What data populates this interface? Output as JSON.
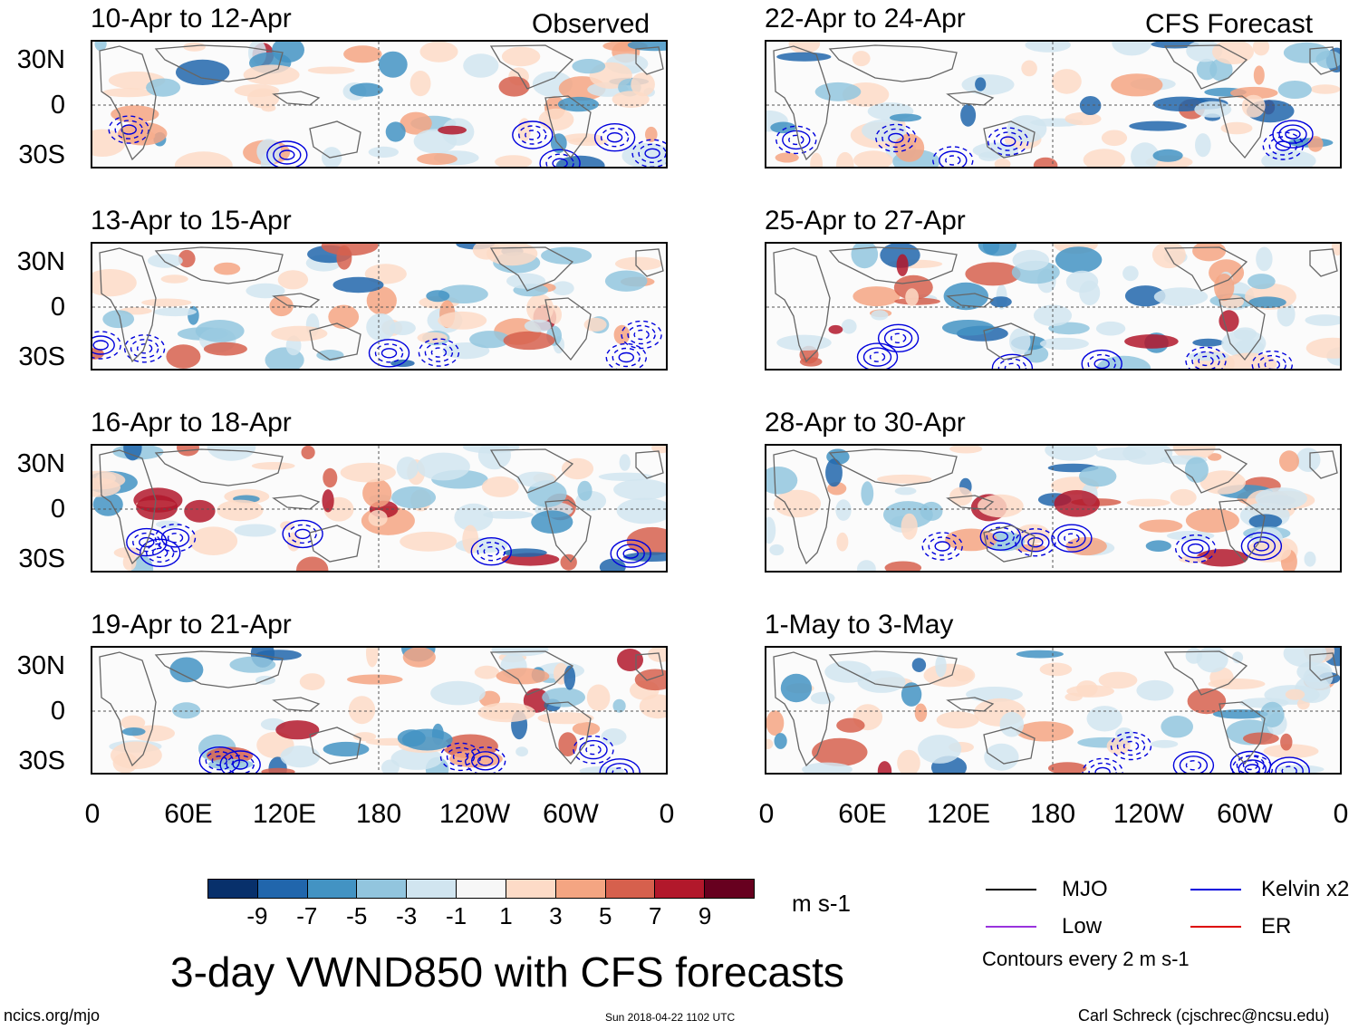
{
  "left_header": "Observed",
  "right_header": "CFS Forecast",
  "panels_left": [
    {
      "title": "10-Apr to 12-Apr"
    },
    {
      "title": "13-Apr to 15-Apr"
    },
    {
      "title": "16-Apr to 18-Apr"
    },
    {
      "title": "19-Apr to 21-Apr"
    }
  ],
  "panels_right": [
    {
      "title": "22-Apr to 24-Apr"
    },
    {
      "title": "25-Apr to 27-Apr"
    },
    {
      "title": "28-Apr to 30-Apr"
    },
    {
      "title": "1-May to 3-May"
    }
  ],
  "y_ticks": [
    "30N",
    "0",
    "30S"
  ],
  "x_ticks": [
    "0",
    "60E",
    "120E",
    "180",
    "120W",
    "60W",
    "0"
  ],
  "colorbar": {
    "colors": [
      "#08306b",
      "#2166ac",
      "#4393c3",
      "#92c5de",
      "#d1e5f0",
      "#f7f7f7",
      "#fddbc7",
      "#f4a582",
      "#d6604d",
      "#b2182b",
      "#67001f"
    ],
    "labels": [
      "-9",
      "-7",
      "-5",
      "-3",
      "-1",
      "1",
      "3",
      "5",
      "7",
      "9"
    ],
    "units": "m s-1"
  },
  "legend": {
    "items": [
      {
        "label": "MJO",
        "color": "#000000"
      },
      {
        "label": "Kelvin x2",
        "color": "#0000dd"
      },
      {
        "label": "Low",
        "color": "#9933dd"
      },
      {
        "label": "ER",
        "color": "#dd0000"
      }
    ],
    "note": "Contours every 2 m s-1"
  },
  "main_title": "3-day VWND850 with CFS forecasts",
  "footer": {
    "left": "ncics.org/mjo",
    "center": "Sun 2018-04-22 1102 UTC",
    "right": "Carl Schreck (cjschrec@ncsu.edu)"
  }
}
